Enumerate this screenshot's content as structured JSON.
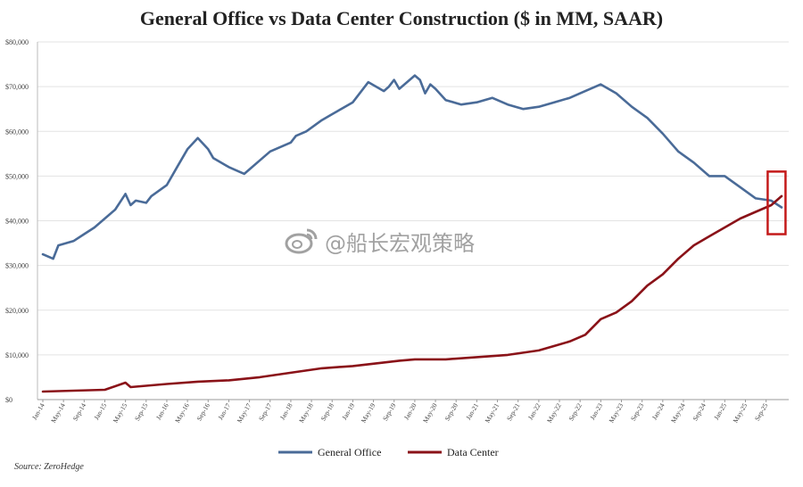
{
  "title": "General Office vs Data Center Construction ($ in MM, SAAR)",
  "source": "Source: ZeroHedge",
  "watermark": "@船长宏观策略",
  "colors": {
    "office": "#4a6b98",
    "datacenter": "#8a1218",
    "highlight": "#c41a1a",
    "grid": "#e3e3e3"
  },
  "chart_data": {
    "type": "line",
    "title": "General Office vs Data Center Construction ($ in MM, SAAR)",
    "xlabel": "",
    "ylabel": "",
    "ylim": [
      0,
      80000
    ],
    "yticks": [
      "$0",
      "$10,000",
      "$20,000",
      "$30,000",
      "$40,000",
      "$50,000",
      "$60,000",
      "$70,000",
      "$80,000"
    ],
    "xticks": [
      "Jan-14",
      "May-14",
      "Sep-14",
      "Jan-15",
      "May-15",
      "Sep-15",
      "Jan-16",
      "May-16",
      "Sep-16",
      "Jan-17",
      "May-17",
      "Sep-17",
      "Jan-18",
      "May-18",
      "Sep-18",
      "Jan-19",
      "May-19",
      "Sep-19",
      "Jan-20",
      "May-20",
      "Sep-20",
      "Jan-21",
      "May-21",
      "Sep-21",
      "Jan-22",
      "May-22",
      "Sep-22",
      "Jan-23",
      "May-23",
      "Sep-23",
      "Jan-24",
      "May-24",
      "Sep-24",
      "Jan-25",
      "May-25",
      "Sep-25"
    ],
    "grid": true,
    "legend_position": "bottom",
    "highlight_box": "latest crossover",
    "series": [
      {
        "name": "General Office",
        "x": [
          "Jan-14",
          "Mar-14",
          "Apr-14",
          "Jul-14",
          "Sep-14",
          "Nov-14",
          "Jan-15",
          "Mar-15",
          "May-15",
          "Jun-15",
          "Jul-15",
          "Sep-15",
          "Oct-15",
          "Jan-16",
          "Mar-16",
          "May-16",
          "Jul-16",
          "Sep-16",
          "Oct-16",
          "Jan-17",
          "Mar-17",
          "Apr-17",
          "May-17",
          "Jul-17",
          "Aug-17",
          "Sep-17",
          "Jan-18",
          "Feb-18",
          "Apr-18",
          "Jul-18",
          "Oct-18",
          "Jan-19",
          "Apr-19",
          "Jul-19",
          "Aug-19",
          "Sep-19",
          "Oct-19",
          "Jan-20",
          "Feb-20",
          "Mar-20",
          "Apr-20",
          "May-20",
          "Jul-20",
          "Oct-20",
          "Jan-21",
          "Apr-21",
          "Jul-21",
          "Oct-21",
          "Jan-22",
          "Apr-22",
          "Jul-22",
          "Oct-22",
          "Jan-23",
          "Apr-23",
          "Jul-23",
          "Oct-23",
          "Jan-24",
          "Apr-24",
          "Jul-24",
          "Oct-24",
          "Jan-25",
          "Apr-25",
          "Jul-25",
          "Oct-25",
          "Dec-25"
        ],
        "values": [
          32500,
          31500,
          34500,
          35500,
          37000,
          38500,
          40500,
          42500,
          46000,
          43500,
          44500,
          44000,
          45500,
          48000,
          52000,
          56000,
          58500,
          56000,
          54000,
          52000,
          51000,
          50500,
          51500,
          53500,
          54500,
          55500,
          57500,
          59000,
          60000,
          62500,
          64500,
          66500,
          71000,
          69000,
          70000,
          71500,
          69500,
          72500,
          71500,
          68500,
          70500,
          69500,
          67000,
          66000,
          66500,
          67500,
          66000,
          65000,
          65500,
          66500,
          67500,
          69000,
          70500,
          68500,
          65500,
          63000,
          59500,
          55500,
          53000,
          50000,
          50000,
          47500,
          45000,
          44500,
          43000
        ]
      },
      {
        "name": "Data Center",
        "x": [
          "Jan-14",
          "Jul-14",
          "Jan-15",
          "May-15",
          "Jun-15",
          "Jan-16",
          "Jul-16",
          "Jan-17",
          "Jul-17",
          "Jan-18",
          "Jul-18",
          "Jan-19",
          "Jul-19",
          "Oct-19",
          "Jan-20",
          "Jul-20",
          "Jan-21",
          "Jul-21",
          "Jan-22",
          "Apr-22",
          "Jul-22",
          "Oct-22",
          "Jan-23",
          "Apr-23",
          "Jul-23",
          "Oct-23",
          "Jan-24",
          "Apr-24",
          "Jul-24",
          "Oct-24",
          "Jan-25",
          "Apr-25",
          "Jul-25",
          "Oct-25",
          "Dec-25"
        ],
        "values": [
          1800,
          2000,
          2200,
          3800,
          2800,
          3500,
          4000,
          4300,
          5000,
          6000,
          7000,
          7500,
          8300,
          8700,
          9000,
          9000,
          9500,
          10000,
          11000,
          12000,
          13000,
          14500,
          18000,
          19500,
          22000,
          25500,
          28000,
          31500,
          34500,
          36500,
          38500,
          40500,
          42000,
          43500,
          45500
        ]
      }
    ]
  }
}
